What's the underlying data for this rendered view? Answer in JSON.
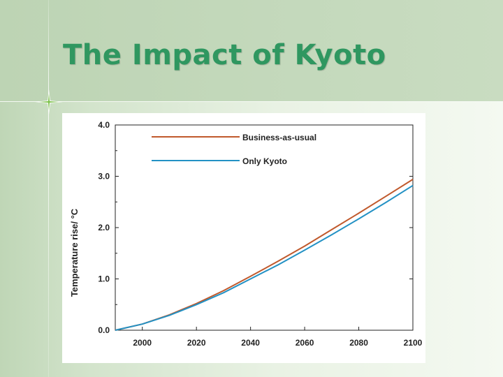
{
  "slide": {
    "title": "The Impact of Kyoto"
  },
  "colors": {
    "title": "#2f9760",
    "bau": "#c0592c",
    "kyoto": "#2391c4"
  },
  "chart_data": {
    "type": "line",
    "title": "",
    "xlabel": "",
    "ylabel": "Temperature rise/ °C",
    "xlim": [
      1990,
      2100
    ],
    "ylim": [
      0,
      4
    ],
    "xticks": [
      2000,
      2020,
      2040,
      2060,
      2080,
      2100
    ],
    "xtick_labels": [
      "2000",
      "2020",
      "2040",
      "2060",
      "2080",
      "2100"
    ],
    "yticks": [
      0,
      1,
      2,
      3,
      4
    ],
    "ytick_labels": [
      "0.0",
      "1.0",
      "2.0",
      "3.0",
      "4.0"
    ],
    "grid": false,
    "legend": "top-left",
    "series": [
      {
        "name": "Business-as-usual",
        "color": "#c0592c",
        "x": [
          1990,
          2000,
          2010,
          2020,
          2030,
          2040,
          2050,
          2060,
          2070,
          2080,
          2090,
          2100
        ],
        "y": [
          0.0,
          0.12,
          0.3,
          0.52,
          0.77,
          1.05,
          1.34,
          1.64,
          1.96,
          2.28,
          2.61,
          2.94
        ]
      },
      {
        "name": "Only Kyoto",
        "color": "#2391c4",
        "x": [
          1990,
          2000,
          2010,
          2020,
          2030,
          2040,
          2050,
          2060,
          2070,
          2080,
          2090,
          2100
        ],
        "y": [
          0.0,
          0.12,
          0.29,
          0.5,
          0.73,
          1.0,
          1.27,
          1.56,
          1.86,
          2.17,
          2.49,
          2.82
        ]
      }
    ]
  }
}
